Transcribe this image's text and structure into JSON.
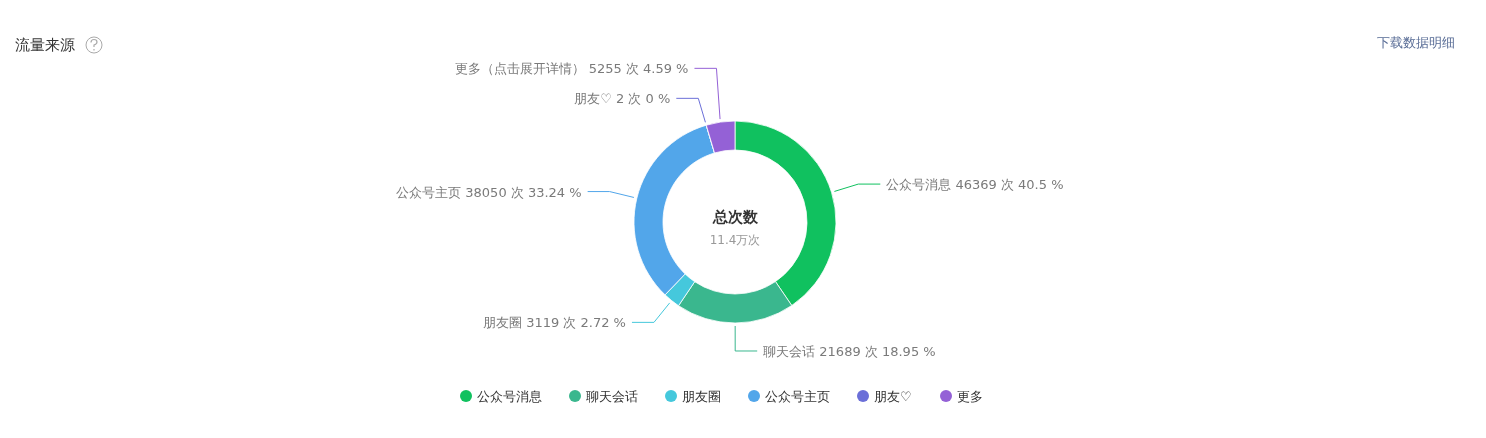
{
  "chart_data": {
    "type": "donut",
    "title": "流量来源",
    "categories": [
      "公众号消息",
      "聊天会话",
      "朋友圈",
      "公众号主页",
      "朋友♡",
      "更多"
    ],
    "values": [
      46369,
      21689,
      3119,
      38050,
      2,
      5255
    ],
    "colors": [
      "#10c15f",
      "#3ab78e",
      "#45c8dc",
      "#52a6ea",
      "#6b6fd8",
      "#9461d6"
    ],
    "value_labels": [
      "公众号消息 46369 次 40.5 %",
      "聊天会话 21689 次 18.95 %",
      "朋友圈 3119 次 2.72 %",
      "公众号主页 38050 次 33.24 %",
      "朋友♡ 2 次 0 %",
      "更多（点击展开详情） 5255 次 4.59 %"
    ],
    "annotations": [
      "总次数",
      "11.4万次",
      "下载数据明细"
    ],
    "legend": "bottom"
  }
}
